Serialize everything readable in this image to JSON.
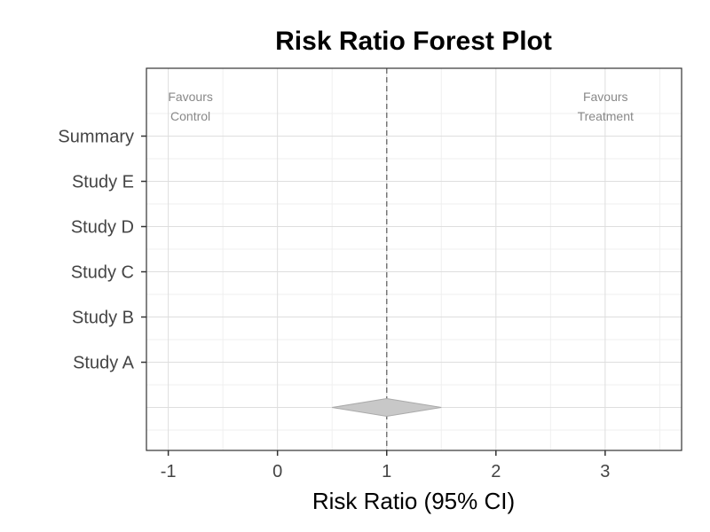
{
  "chart_data": {
    "type": "forest",
    "title": "Risk Ratio Forest Plot",
    "xlabel": "Risk Ratio (95% CI)",
    "ylabel": "",
    "xlim": [
      -1.2,
      3.7
    ],
    "x_ticks": [
      -1,
      0,
      1,
      2,
      3
    ],
    "x_tick_labels": [
      "-1",
      "0",
      "1",
      "2",
      "3"
    ],
    "reference_line": 1,
    "rows": [
      {
        "label": "Summary",
        "y": 7
      },
      {
        "label": "Study E",
        "y": 6
      },
      {
        "label": "Study D",
        "y": 5
      },
      {
        "label": "Study C",
        "y": 4
      },
      {
        "label": "Study B",
        "y": 3
      },
      {
        "label": "Study A",
        "y": 2
      }
    ],
    "ylim": [
      0.05,
      8.5
    ],
    "summary_diamond": {
      "estimate": 1.0,
      "lower": 0.5,
      "upper": 1.5,
      "y": 1,
      "color": "#c8c8c8",
      "stroke": "#aaaaaa"
    },
    "annotations": [
      {
        "lines": [
          "Favours",
          "Control"
        ],
        "x": -1.0
      },
      {
        "lines": [
          "Favours",
          "Treatment"
        ],
        "x": 2.8
      }
    ],
    "grid": true
  }
}
